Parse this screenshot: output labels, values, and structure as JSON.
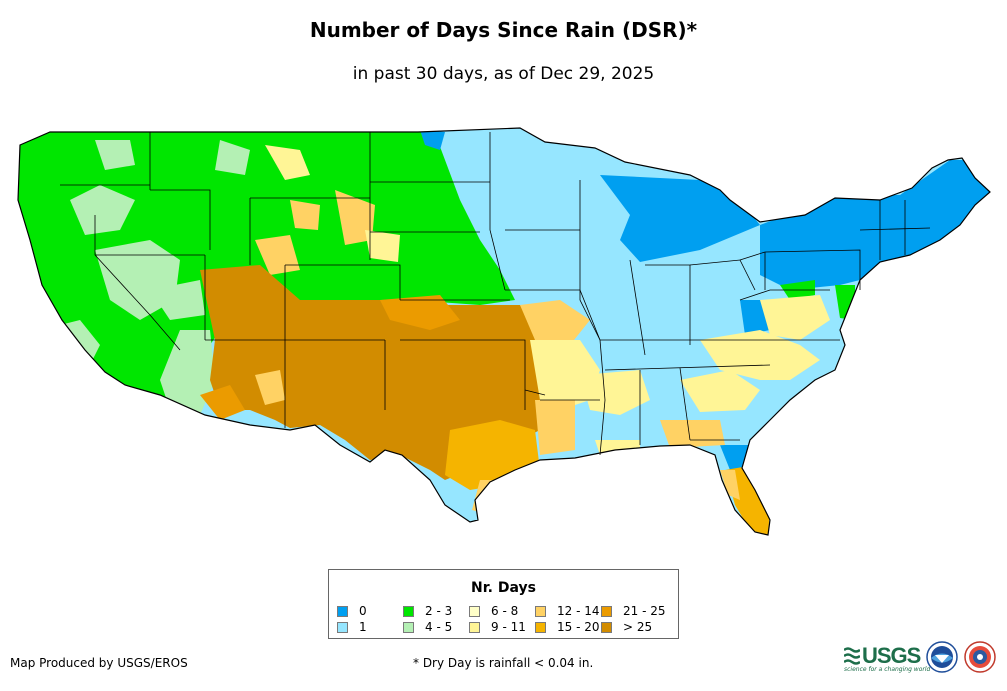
{
  "header": {
    "title": "Number of Days Since Rain (DSR)*",
    "subtitle": "in past 30 days, as of Dec 29, 2025"
  },
  "legend": {
    "title": "Nr. Days",
    "items": [
      {
        "label": "0",
        "color": "#009ff0"
      },
      {
        "label": "1",
        "color": "#96e6ff"
      },
      {
        "label": "2 - 3",
        "color": "#00e600"
      },
      {
        "label": "4 - 5",
        "color": "#b4f0b4"
      },
      {
        "label": "6 - 8",
        "color": "#ffffc8"
      },
      {
        "label": "9 - 11",
        "color": "#fff596"
      },
      {
        "label": "12 - 14",
        "color": "#ffd264"
      },
      {
        "label": "15 - 20",
        "color": "#f5b400"
      },
      {
        "label": "21 - 25",
        "color": "#eb9b00"
      },
      {
        "label": "> 25",
        "color": "#d28c00"
      }
    ]
  },
  "footer": {
    "credit": "Map Produced by USGS/EROS",
    "footnote": "* Dry Day is rainfall < 0.04 in.",
    "logos": {
      "usgs": "USGS",
      "usgs_tagline": "science for a changing world"
    }
  },
  "colors": {
    "state_border": "#000000",
    "water": "#ffffff"
  }
}
